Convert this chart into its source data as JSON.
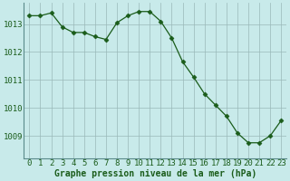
{
  "x": [
    0,
    1,
    2,
    3,
    4,
    5,
    6,
    7,
    8,
    9,
    10,
    11,
    12,
    13,
    14,
    15,
    16,
    17,
    18,
    19,
    20,
    21,
    22,
    23
  ],
  "y": [
    1013.3,
    1013.3,
    1013.4,
    1012.9,
    1012.7,
    1012.7,
    1012.55,
    1012.45,
    1013.05,
    1013.3,
    1013.45,
    1013.45,
    1013.1,
    1012.5,
    1011.65,
    1011.1,
    1010.5,
    1010.1,
    1009.7,
    1009.1,
    1008.75,
    1008.75,
    1009.0,
    1009.55
  ],
  "line_color": "#1a5c1a",
  "marker": "D",
  "marker_size": 2.5,
  "bg_color": "#c8eaea",
  "grid_color_major": "#9ab8b8",
  "grid_color_minor": "#b8d4d4",
  "xlabel": "Graphe pression niveau de la mer (hPa)",
  "xlabel_fontsize": 7,
  "xlabel_color": "#1a5c1a",
  "tick_label_color": "#1a5c1a",
  "tick_fontsize": 6.5,
  "ylim": [
    1008.2,
    1013.75
  ],
  "xlim": [
    -0.5,
    23.5
  ],
  "ytick_values": [
    1009,
    1010,
    1011,
    1012,
    1013
  ],
  "xtick_values": [
    0,
    1,
    2,
    3,
    4,
    5,
    6,
    7,
    8,
    9,
    10,
    11,
    12,
    13,
    14,
    15,
    16,
    17,
    18,
    19,
    20,
    21,
    22,
    23
  ],
  "left_spine_color": "#5a8a8a",
  "bottom_spine_color": "#5a8a8a"
}
